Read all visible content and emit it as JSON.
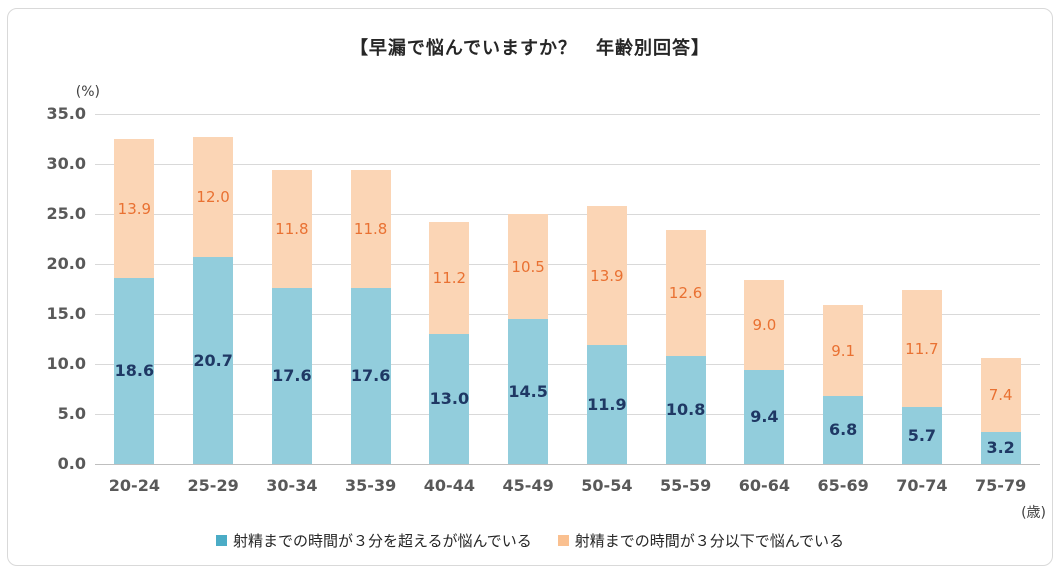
{
  "chart_data": {
    "type": "bar",
    "stacked": true,
    "title": "【早漏で悩んでいますか？　年齢別回答】",
    "unit_y": "(%)",
    "unit_x": "(歳)",
    "categories": [
      "20-24",
      "25-29",
      "30-34",
      "35-39",
      "40-44",
      "45-49",
      "50-54",
      "55-59",
      "60-64",
      "65-69",
      "70-74",
      "75-79"
    ],
    "series": [
      {
        "name": "射精までの時間が３分を超えるが悩んでいる",
        "bar_color": "#92cddc",
        "legend_color": "#4bacc6",
        "label_color": "#1f3864",
        "values": [
          18.6,
          20.7,
          17.6,
          17.6,
          13.0,
          14.5,
          11.9,
          10.8,
          9.4,
          6.8,
          5.7,
          3.2
        ]
      },
      {
        "name": "射精までの時間が３分以下で悩んでいる",
        "bar_color": "#fbd5b5",
        "legend_color": "#fac090",
        "label_color": "#e97132",
        "values": [
          13.9,
          12.0,
          11.8,
          11.8,
          11.2,
          10.5,
          13.9,
          12.6,
          9.0,
          9.1,
          11.7,
          7.4
        ]
      }
    ],
    "yticks": [
      "35.0",
      "30.0",
      "25.0",
      "20.0",
      "15.0",
      "10.0",
      "5.0",
      "0.0"
    ],
    "ylim": [
      0,
      35
    ],
    "grid": true,
    "legend_position": "bottom"
  }
}
